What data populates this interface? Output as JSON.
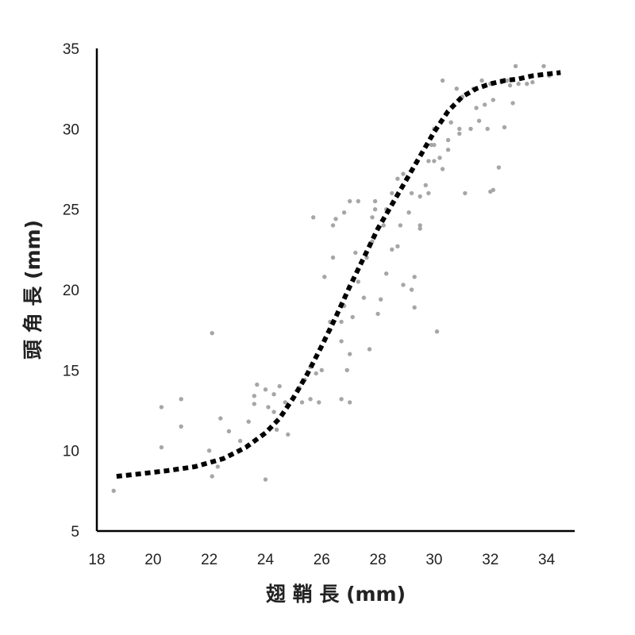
{
  "chart_data": {
    "type": "scatter",
    "title": "",
    "xlabel": "翅 鞘 長 (mm)",
    "ylabel": "頭 角 長 (mm)",
    "xlim": [
      18,
      35
    ],
    "ylim": [
      5,
      35
    ],
    "x_ticks": [
      "18",
      "20",
      "22",
      "24",
      "26",
      "28",
      "30",
      "32",
      "34"
    ],
    "y_ticks": [
      "5",
      "10",
      "15",
      "20",
      "25",
      "30",
      "35"
    ],
    "grid": false,
    "legend": "none",
    "colors": {
      "points": "#a6a6a6",
      "curve": "#000000",
      "axis": "#000000"
    },
    "series": [
      {
        "kind": "points",
        "points": [
          [
            18.6,
            7.5
          ],
          [
            20.3,
            12.7
          ],
          [
            20.3,
            10.2
          ],
          [
            21.0,
            13.2
          ],
          [
            21.0,
            11.5
          ],
          [
            22.1,
            17.3
          ],
          [
            22.0,
            10.0
          ],
          [
            22.1,
            8.4
          ],
          [
            22.3,
            9.0
          ],
          [
            22.4,
            12.0
          ],
          [
            22.7,
            11.2
          ],
          [
            23.1,
            10.6
          ],
          [
            23.4,
            11.8
          ],
          [
            23.6,
            12.9
          ],
          [
            23.6,
            13.4
          ],
          [
            23.7,
            14.1
          ],
          [
            24.0,
            13.8
          ],
          [
            24.0,
            8.2
          ],
          [
            24.1,
            12.7
          ],
          [
            24.3,
            13.5
          ],
          [
            24.3,
            12.4
          ],
          [
            24.5,
            14.0
          ],
          [
            24.4,
            11.3
          ],
          [
            24.7,
            13.0
          ],
          [
            24.8,
            11.0
          ],
          [
            25.2,
            13.9
          ],
          [
            25.3,
            13.0
          ],
          [
            25.4,
            14.4
          ],
          [
            25.6,
            13.2
          ],
          [
            25.6,
            15.2
          ],
          [
            25.7,
            24.5
          ],
          [
            25.8,
            14.8
          ],
          [
            25.9,
            13.0
          ],
          [
            26.0,
            15.0
          ],
          [
            26.1,
            20.8
          ],
          [
            26.3,
            17.5
          ],
          [
            26.3,
            18.0
          ],
          [
            26.4,
            22.0
          ],
          [
            26.4,
            24.0
          ],
          [
            26.5,
            24.4
          ],
          [
            26.7,
            16.8
          ],
          [
            26.7,
            18.0
          ],
          [
            26.7,
            13.2
          ],
          [
            26.8,
            24.8
          ],
          [
            26.8,
            19.0
          ],
          [
            26.9,
            15.0
          ],
          [
            27.0,
            16.0
          ],
          [
            27.0,
            25.5
          ],
          [
            27.0,
            13.0
          ],
          [
            27.1,
            18.3
          ],
          [
            27.2,
            22.3
          ],
          [
            27.3,
            20.5
          ],
          [
            27.3,
            25.5
          ],
          [
            27.5,
            19.5
          ],
          [
            27.6,
            22.0
          ],
          [
            27.7,
            16.3
          ],
          [
            27.8,
            23.0
          ],
          [
            27.8,
            24.5
          ],
          [
            27.9,
            25.0
          ],
          [
            27.9,
            25.5
          ],
          [
            28.0,
            18.5
          ],
          [
            28.1,
            19.4
          ],
          [
            28.2,
            24.0
          ],
          [
            28.3,
            21.0
          ],
          [
            28.3,
            25.0
          ],
          [
            28.5,
            26.0
          ],
          [
            28.5,
            22.5
          ],
          [
            28.7,
            22.7
          ],
          [
            28.7,
            26.9
          ],
          [
            28.8,
            24.0
          ],
          [
            28.9,
            27.2
          ],
          [
            28.9,
            20.3
          ],
          [
            29.1,
            24.8
          ],
          [
            29.2,
            20.0
          ],
          [
            29.2,
            26.0
          ],
          [
            29.3,
            18.9
          ],
          [
            29.3,
            20.8
          ],
          [
            29.5,
            25.8
          ],
          [
            29.5,
            24.0
          ],
          [
            29.5,
            23.8
          ],
          [
            29.7,
            26.5
          ],
          [
            29.8,
            28.0
          ],
          [
            29.8,
            26.0
          ],
          [
            29.9,
            29.0
          ],
          [
            30.0,
            29.0
          ],
          [
            30.0,
            30.0
          ],
          [
            30.0,
            28.0
          ],
          [
            30.1,
            17.4
          ],
          [
            30.2,
            28.2
          ],
          [
            30.3,
            33.0
          ],
          [
            30.3,
            27.5
          ],
          [
            30.5,
            28.7
          ],
          [
            30.5,
            29.3
          ],
          [
            30.6,
            30.4
          ],
          [
            30.8,
            32.5
          ],
          [
            30.9,
            30.0
          ],
          [
            30.9,
            29.7
          ],
          [
            31.0,
            32.0
          ],
          [
            31.1,
            26.0
          ],
          [
            31.3,
            30.0
          ],
          [
            31.4,
            32.5
          ],
          [
            31.5,
            31.3
          ],
          [
            31.6,
            30.5
          ],
          [
            31.7,
            33.0
          ],
          [
            31.8,
            31.5
          ],
          [
            31.9,
            30.0
          ],
          [
            32.0,
            32.8
          ],
          [
            32.0,
            26.1
          ],
          [
            32.1,
            26.2
          ],
          [
            32.1,
            31.8
          ],
          [
            32.3,
            27.6
          ],
          [
            32.4,
            32.9
          ],
          [
            32.5,
            30.1
          ],
          [
            32.6,
            33.0
          ],
          [
            32.7,
            32.7
          ],
          [
            32.8,
            31.6
          ],
          [
            32.9,
            33.9
          ],
          [
            33.0,
            32.8
          ],
          [
            33.3,
            32.8
          ],
          [
            33.5,
            32.9
          ],
          [
            33.9,
            33.9
          ],
          [
            34.1,
            33.3
          ]
        ]
      },
      {
        "kind": "fitted-curve",
        "points": [
          [
            18.7,
            8.4
          ],
          [
            19.5,
            8.55
          ],
          [
            20.5,
            8.75
          ],
          [
            21.5,
            9.0
          ],
          [
            22.5,
            9.5
          ],
          [
            23.3,
            10.2
          ],
          [
            24.0,
            11.1
          ],
          [
            24.5,
            12.0
          ],
          [
            25.0,
            13.3
          ],
          [
            25.5,
            14.8
          ],
          [
            26.0,
            16.5
          ],
          [
            26.5,
            18.3
          ],
          [
            27.0,
            20.2
          ],
          [
            27.5,
            22.0
          ],
          [
            28.0,
            23.8
          ],
          [
            28.5,
            25.3
          ],
          [
            29.0,
            26.8
          ],
          [
            29.5,
            28.3
          ],
          [
            30.0,
            29.8
          ],
          [
            30.5,
            31.1
          ],
          [
            31.0,
            32.0
          ],
          [
            31.5,
            32.5
          ],
          [
            32.0,
            32.8
          ],
          [
            32.5,
            33.0
          ],
          [
            33.0,
            33.1
          ],
          [
            33.5,
            33.3
          ],
          [
            34.0,
            33.4
          ],
          [
            34.5,
            33.5
          ]
        ]
      }
    ]
  }
}
